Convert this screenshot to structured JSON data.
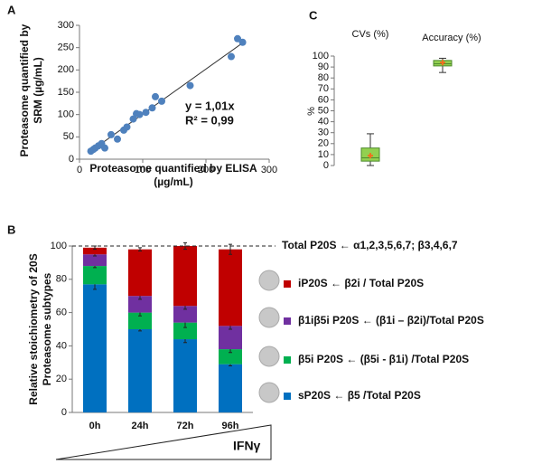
{
  "chart_data": [
    {
      "type": "scatter",
      "panel": "A",
      "x_label": [
        "Proteasome quantified by ELISA",
        "(µg/mL)"
      ],
      "y_label": [
        "Proteasome quantified by",
        "SRM (µg/mL)"
      ],
      "annotations": [
        "y = 1,01x",
        "R² = 0,99"
      ],
      "x": [
        18,
        22,
        25,
        30,
        35,
        40,
        50,
        60,
        70,
        75,
        85,
        90,
        95,
        105,
        115,
        120,
        130,
        175,
        240,
        250,
        258
      ],
      "values": [
        18,
        22,
        25,
        30,
        35,
        25,
        55,
        45,
        65,
        72,
        90,
        102,
        100,
        105,
        115,
        140,
        130,
        165,
        230,
        270,
        262
      ],
      "color": "#4f81bd",
      "trend_slope": 1.01,
      "xlim": [
        0,
        300
      ],
      "xticks": [
        0,
        100,
        200,
        300
      ],
      "ylim": [
        0,
        300
      ],
      "yticks": [
        0,
        50,
        100,
        150,
        200,
        250,
        300
      ]
    },
    {
      "type": "box",
      "panel": "C",
      "y_label": "%",
      "categories": [
        "CVs (%)",
        "Accuracy (%)"
      ],
      "boxes": [
        {
          "min": 0,
          "q1": 4,
          "median": 7,
          "q3": 16,
          "max": 29,
          "mean": 9
        },
        {
          "min": 85,
          "q1": 91,
          "median": 93,
          "q3": 96,
          "max": 98,
          "mean": 94
        }
      ],
      "color": "#92d050",
      "ylim": [
        0,
        100
      ],
      "yticks": [
        0,
        10,
        20,
        30,
        40,
        50,
        60,
        70,
        80,
        90,
        100
      ]
    },
    {
      "type": "stacked_bar",
      "panel": "B",
      "y_label": [
        "Relative stoichiometry of 20S",
        "Proteasome subtypes"
      ],
      "x_annotation": "IFNγ",
      "categories": [
        "0h",
        "24h",
        "72h",
        "96h"
      ],
      "series": [
        {
          "name": "sP20S ← β5 /Total P20S",
          "color": "#0070c0",
          "values": [
            77,
            50,
            44,
            29
          ],
          "errors": [
            3,
            1,
            2,
            1
          ]
        },
        {
          "name": "β5i P20S ← (β5i - β1i) /Total P20S",
          "color": "#00b050",
          "values": [
            11,
            10,
            10,
            9
          ],
          "errors": [
            1,
            2,
            3,
            2
          ]
        },
        {
          "name": "β1iβ5i P20S ← (β1i – β2i)/Total P20S",
          "color": "#7030a0",
          "values": [
            7,
            10,
            10,
            14
          ],
          "errors": [
            1,
            2,
            2,
            2
          ]
        },
        {
          "name": "iP20S ← β2i / Total P20S",
          "color": "#c00000",
          "values": [
            4,
            28,
            36,
            46
          ],
          "errors": [
            1,
            1,
            2,
            3
          ]
        }
      ],
      "reference_line": {
        "value": 100,
        "label": "Total P20S ← α1,2,3,5,6,7; β3,4,6,7"
      },
      "ylim": [
        0,
        100
      ],
      "yticks": [
        0,
        20,
        40,
        60,
        80,
        100
      ]
    }
  ]
}
